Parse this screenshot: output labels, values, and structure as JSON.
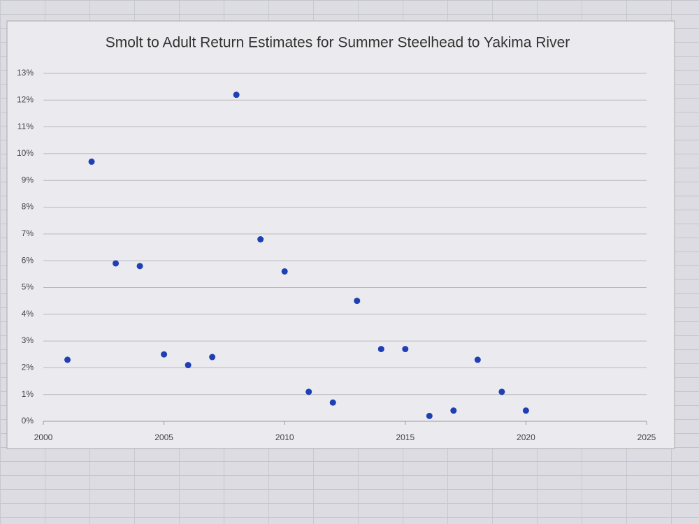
{
  "chart_data": {
    "type": "scatter",
    "title": "Smolt to Adult Return Estimates for Summer Steelhead to Yakima River",
    "x": [
      2001,
      2002,
      2003,
      2004,
      2005,
      2006,
      2007,
      2008,
      2009,
      2010,
      2011,
      2012,
      2013,
      2014,
      2015,
      2016,
      2017,
      2018,
      2019,
      2020
    ],
    "values": [
      2.3,
      9.7,
      5.9,
      5.8,
      2.5,
      2.1,
      2.4,
      12.2,
      6.8,
      5.6,
      1.1,
      0.7,
      4.5,
      2.7,
      2.7,
      0.2,
      0.4,
      2.3,
      1.1,
      0.4
    ],
    "color": "#1f3fb5",
    "xlim": [
      2000,
      2025
    ],
    "xticks": [
      2000,
      2005,
      2010,
      2015,
      2020,
      2025
    ],
    "ylim": [
      0,
      13
    ],
    "yticks": [
      {
        "value": 0,
        "label": "0%"
      },
      {
        "value": 1,
        "label": "1%"
      },
      {
        "value": 2,
        "label": "2%"
      },
      {
        "value": 3,
        "label": "3%"
      },
      {
        "value": 4,
        "label": "4%"
      },
      {
        "value": 5,
        "label": "5%"
      },
      {
        "value": 6,
        "label": "6%"
      },
      {
        "value": 7,
        "label": "7%"
      },
      {
        "value": 8,
        "label": "8%"
      },
      {
        "value": 9,
        "label": "9%"
      },
      {
        "value": 10,
        "label": "10%"
      },
      {
        "value": 11,
        "label": "11%"
      },
      {
        "value": 12,
        "label": "12%"
      },
      {
        "value": 13,
        "label": "13%"
      }
    ],
    "grid": true
  }
}
